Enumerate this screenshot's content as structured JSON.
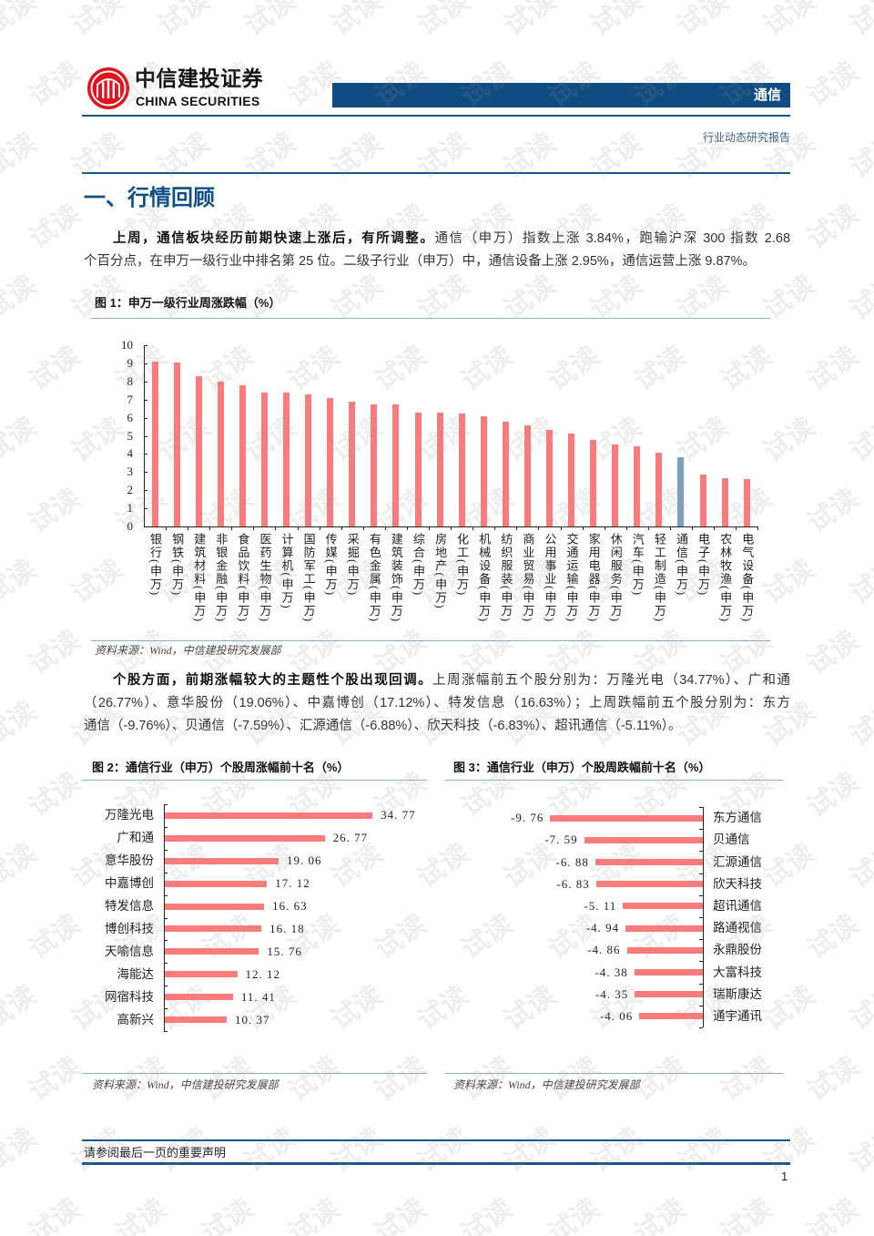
{
  "header": {
    "logo_cn": "中信建投证券",
    "logo_en": "CHINA SECURITIES",
    "sector": "通信",
    "report_type": "行业动态研究报告"
  },
  "section": {
    "title": "一、行情回顾"
  },
  "paragraph1": {
    "bold": "上周，通信板块经历前期快速上涨后，有所调整。",
    "line1_rest": "通信（申万）指数上涨 3.84%，跑输沪深 300 指数 2.68",
    "line2": "个百分点，在申万一级行业中排名第 25 位。二级子行业（申万）中，通信设备上涨 2.95%，通信运营上涨 9.87%。"
  },
  "figure1": {
    "title": "图 1：申万一级行业周涨跌幅（%）",
    "source": "资料来源：Wind，中信建投研究发展部"
  },
  "paragraph2": {
    "bold": "个股方面，前期涨幅较大的主题性个股出现回调。",
    "line1_rest": "上周涨幅前五个股分别为：万隆光电（34.77%）、广和通",
    "line2": "（26.77%）、意华股份（19.06%）、中嘉博创（17.12%）、特发信息（16.63%）；上周跌幅前五个股分别为：东方",
    "line3": "通信（-9.76%）、贝通信（-7.59%）、汇源通信（-6.88%）、欣天科技（-6.83%）、超讯通信（-5.11%）。"
  },
  "figure2": {
    "title": "图 2：通信行业（申万）个股周涨幅前十名（%）",
    "source": "资料来源：Wind，中信建投研究发展部"
  },
  "figure3": {
    "title": "图 3：通信行业（申万）个股周跌幅前十名（%）",
    "source": "资料来源：Wind，中信建投研究发展部"
  },
  "footer": {
    "disclaimer": "请参阅最后一页的重要声明",
    "page": "1"
  },
  "watermark": {
    "text": "试读"
  },
  "colors": {
    "brand_blue": "#0f4c81",
    "title_blue": "#0d4f86",
    "bar_red": "#ff7b7b",
    "bar_highlight": "#7aa0bc",
    "logo_red": "#e0141e"
  },
  "chart_data": [
    {
      "type": "bar",
      "title": "图 1：申万一级行业周涨跌幅（%）",
      "xlabel": "",
      "ylabel": "%",
      "ylim": [
        0,
        10
      ],
      "yticks": [
        0,
        1,
        2,
        3,
        4,
        5,
        6,
        7,
        8,
        9,
        10
      ],
      "grid": false,
      "legend": "none",
      "highlight": "通信(申万)",
      "categories": [
        "银行(申万)",
        "钢铁(申万)",
        "建筑材料(申万)",
        "非银金融(申万)",
        "食品饮料(申万)",
        "医药生物(申万)",
        "计算机(申万)",
        "国防军工(申万)",
        "传媒(申万)",
        "采掘(申万)",
        "有色金属(申万)",
        "建筑装饰(申万)",
        "综合(申万)",
        "房地产(申万)",
        "化工(申万)",
        "机械设备(申万)",
        "纺织服装(申万)",
        "商业贸易(申万)",
        "公用事业(申万)",
        "交通运输(申万)",
        "家用电器(申万)",
        "休闲服务(申万)",
        "汽车(申万)",
        "轻工制造(申万)",
        "通信(申万)",
        "电子(申万)",
        "农林牧渔(申万)",
        "电气设备(申万)"
      ],
      "values": [
        9.08,
        9.05,
        8.3,
        7.97,
        7.77,
        7.4,
        7.38,
        7.27,
        7.1,
        6.86,
        6.74,
        6.71,
        6.28,
        6.26,
        6.21,
        6.07,
        5.76,
        5.56,
        5.32,
        5.13,
        4.75,
        4.51,
        4.4,
        4.08,
        3.84,
        2.85,
        2.65,
        2.6
      ]
    },
    {
      "type": "bar",
      "orientation": "horizontal",
      "title": "图 2：通信行业（申万）个股周涨幅前十名（%）",
      "xlabel": "",
      "ylabel": "",
      "data_labels": true,
      "categories": [
        "万隆光电",
        "广和通",
        "意华股份",
        "中嘉博创",
        "特发信息",
        "博创科技",
        "天喻信息",
        "海能达",
        "网宿科技",
        "高新兴"
      ],
      "values": [
        34.77,
        26.77,
        19.06,
        17.12,
        16.63,
        16.18,
        15.76,
        12.12,
        11.41,
        10.37
      ],
      "value_labels": [
        "34. 77",
        "26. 77",
        "19. 06",
        "17. 12",
        "16. 63",
        "16. 18",
        "15. 76",
        "12. 12",
        "11. 41",
        "10. 37"
      ]
    },
    {
      "type": "bar",
      "orientation": "horizontal",
      "title": "图 3：通信行业（申万）个股周跌幅前十名（%）",
      "xlabel": "",
      "ylabel": "",
      "data_labels": true,
      "categories": [
        "东方通信",
        "贝通信",
        "汇源通信",
        "欣天科技",
        "超讯通信",
        "路通视信",
        "永鼎股份",
        "大富科技",
        "瑞斯康达",
        "通宇通讯"
      ],
      "values": [
        -9.76,
        -7.59,
        -6.88,
        -6.83,
        -5.11,
        -4.94,
        -4.86,
        -4.38,
        -4.35,
        -4.06
      ],
      "value_labels": [
        "-9. 76",
        "-7. 59",
        "-6. 88",
        "-6. 83",
        "-5. 11",
        "-4. 94",
        "-4. 86",
        "-4. 38",
        "-4. 35",
        "-4. 06"
      ]
    }
  ]
}
